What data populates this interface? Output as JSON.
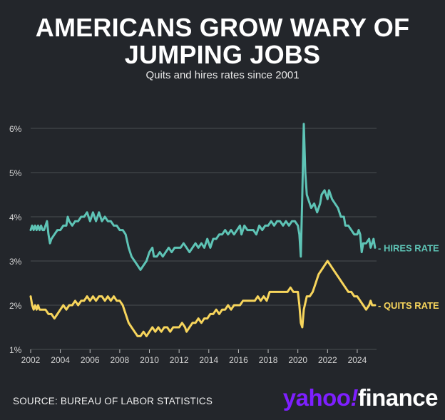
{
  "title_line1": "AMERICANS GROW WARY OF",
  "title_line2": "JUMPING JOBS",
  "subtitle": "Quits and hires rates since 2001",
  "source": "SOURCE: BUREAU OF LABOR STATISTICS",
  "logo": {
    "part1": "yahoo",
    "bang": "!",
    "part2": "finance"
  },
  "colors": {
    "background": "#23262b",
    "hires": "#5ec4b6",
    "quits": "#f7d55c",
    "grid": "#4a4d52",
    "axis_text": "#d4d4d4",
    "logo": "#7e1fff"
  },
  "chart_data": {
    "type": "line",
    "title": "AMERICANS GROW WARY OF JUMPING JOBS",
    "subtitle": "Quits and hires rates since 2001",
    "xlabel": "",
    "ylabel": "",
    "xlim": [
      2002.0,
      2025.3
    ],
    "ylim": [
      1,
      6
    ],
    "grid": true,
    "y_ticks": [
      {
        "value": 1,
        "label": "1%"
      },
      {
        "value": 2,
        "label": "2%"
      },
      {
        "value": 3,
        "label": "3%"
      },
      {
        "value": 4,
        "label": "4%"
      },
      {
        "value": 5,
        "label": "5%"
      },
      {
        "value": 6,
        "label": "6%"
      }
    ],
    "x_ticks": [
      {
        "value": 2002,
        "label": "2002"
      },
      {
        "value": 2004,
        "label": "2004"
      },
      {
        "value": 2006,
        "label": "2006"
      },
      {
        "value": 2008,
        "label": "2008"
      },
      {
        "value": 2010,
        "label": "2010"
      },
      {
        "value": 2012,
        "label": "2012"
      },
      {
        "value": 2014,
        "label": "2014"
      },
      {
        "value": 2016,
        "label": "2016"
      },
      {
        "value": 2018,
        "label": "2018"
      },
      {
        "value": 2020,
        "label": "2020"
      },
      {
        "value": 2022,
        "label": "2022"
      },
      {
        "value": 2024,
        "label": "2024"
      }
    ],
    "series": [
      {
        "name": "HIRES RATE",
        "label": "- HIRES RATE",
        "color": "#5ec4b6",
        "points": [
          [
            2002.0,
            3.7
          ],
          [
            2002.1,
            3.8
          ],
          [
            2002.2,
            3.7
          ],
          [
            2002.3,
            3.8
          ],
          [
            2002.4,
            3.7
          ],
          [
            2002.5,
            3.8
          ],
          [
            2002.6,
            3.7
          ],
          [
            2002.7,
            3.8
          ],
          [
            2002.8,
            3.7
          ],
          [
            2002.9,
            3.7
          ],
          [
            2003.0,
            3.8
          ],
          [
            2003.1,
            3.9
          ],
          [
            2003.2,
            3.6
          ],
          [
            2003.3,
            3.4
          ],
          [
            2003.4,
            3.5
          ],
          [
            2003.6,
            3.6
          ],
          [
            2003.8,
            3.7
          ],
          [
            2004.0,
            3.7
          ],
          [
            2004.2,
            3.8
          ],
          [
            2004.4,
            3.8
          ],
          [
            2004.5,
            4.0
          ],
          [
            2004.6,
            3.9
          ],
          [
            2004.8,
            3.8
          ],
          [
            2005.0,
            3.9
          ],
          [
            2005.2,
            3.9
          ],
          [
            2005.4,
            4.0
          ],
          [
            2005.6,
            4.0
          ],
          [
            2005.8,
            4.1
          ],
          [
            2006.0,
            3.9
          ],
          [
            2006.2,
            4.1
          ],
          [
            2006.4,
            3.9
          ],
          [
            2006.6,
            4.1
          ],
          [
            2006.8,
            3.9
          ],
          [
            2007.0,
            4.0
          ],
          [
            2007.2,
            3.9
          ],
          [
            2007.4,
            3.9
          ],
          [
            2007.6,
            3.8
          ],
          [
            2007.8,
            3.8
          ],
          [
            2008.0,
            3.7
          ],
          [
            2008.2,
            3.7
          ],
          [
            2008.4,
            3.6
          ],
          [
            2008.6,
            3.3
          ],
          [
            2008.8,
            3.1
          ],
          [
            2009.0,
            3.0
          ],
          [
            2009.2,
            2.9
          ],
          [
            2009.4,
            2.8
          ],
          [
            2009.6,
            2.9
          ],
          [
            2009.8,
            3.0
          ],
          [
            2010.0,
            3.2
          ],
          [
            2010.2,
            3.3
          ],
          [
            2010.3,
            3.1
          ],
          [
            2010.5,
            3.1
          ],
          [
            2010.7,
            3.2
          ],
          [
            2010.9,
            3.1
          ],
          [
            2011.1,
            3.2
          ],
          [
            2011.3,
            3.3
          ],
          [
            2011.5,
            3.2
          ],
          [
            2011.7,
            3.3
          ],
          [
            2011.9,
            3.3
          ],
          [
            2012.1,
            3.3
          ],
          [
            2012.3,
            3.4
          ],
          [
            2012.5,
            3.3
          ],
          [
            2012.7,
            3.2
          ],
          [
            2012.9,
            3.3
          ],
          [
            2013.1,
            3.4
          ],
          [
            2013.3,
            3.3
          ],
          [
            2013.5,
            3.4
          ],
          [
            2013.7,
            3.3
          ],
          [
            2013.9,
            3.5
          ],
          [
            2014.1,
            3.3
          ],
          [
            2014.3,
            3.5
          ],
          [
            2014.5,
            3.5
          ],
          [
            2014.7,
            3.6
          ],
          [
            2014.9,
            3.6
          ],
          [
            2015.1,
            3.7
          ],
          [
            2015.3,
            3.6
          ],
          [
            2015.5,
            3.7
          ],
          [
            2015.7,
            3.6
          ],
          [
            2015.9,
            3.7
          ],
          [
            2016.1,
            3.8
          ],
          [
            2016.2,
            3.6
          ],
          [
            2016.4,
            3.8
          ],
          [
            2016.6,
            3.7
          ],
          [
            2016.8,
            3.7
          ],
          [
            2017.0,
            3.7
          ],
          [
            2017.2,
            3.6
          ],
          [
            2017.4,
            3.8
          ],
          [
            2017.6,
            3.7
          ],
          [
            2017.8,
            3.8
          ],
          [
            2018.0,
            3.8
          ],
          [
            2018.2,
            3.9
          ],
          [
            2018.4,
            3.8
          ],
          [
            2018.6,
            3.9
          ],
          [
            2018.8,
            3.9
          ],
          [
            2019.0,
            3.8
          ],
          [
            2019.2,
            3.9
          ],
          [
            2019.4,
            3.8
          ],
          [
            2019.6,
            3.9
          ],
          [
            2019.8,
            3.9
          ],
          [
            2020.0,
            3.8
          ],
          [
            2020.1,
            3.6
          ],
          [
            2020.2,
            3.1
          ],
          [
            2020.3,
            4.5
          ],
          [
            2020.4,
            6.1
          ],
          [
            2020.5,
            5.0
          ],
          [
            2020.6,
            4.5
          ],
          [
            2020.7,
            4.4
          ],
          [
            2020.9,
            4.2
          ],
          [
            2021.1,
            4.3
          ],
          [
            2021.3,
            4.1
          ],
          [
            2021.5,
            4.3
          ],
          [
            2021.6,
            4.5
          ],
          [
            2021.8,
            4.6
          ],
          [
            2022.0,
            4.4
          ],
          [
            2022.1,
            4.6
          ],
          [
            2022.3,
            4.4
          ],
          [
            2022.5,
            4.3
          ],
          [
            2022.7,
            4.2
          ],
          [
            2022.9,
            4.0
          ],
          [
            2023.1,
            4.0
          ],
          [
            2023.2,
            3.8
          ],
          [
            2023.4,
            3.8
          ],
          [
            2023.6,
            3.7
          ],
          [
            2023.8,
            3.6
          ],
          [
            2024.0,
            3.6
          ],
          [
            2024.1,
            3.7
          ],
          [
            2024.2,
            3.6
          ],
          [
            2024.3,
            3.2
          ],
          [
            2024.4,
            3.4
          ],
          [
            2024.6,
            3.4
          ],
          [
            2024.8,
            3.5
          ],
          [
            2024.9,
            3.3
          ],
          [
            2025.0,
            3.4
          ],
          [
            2025.1,
            3.5
          ],
          [
            2025.2,
            3.3
          ]
        ]
      },
      {
        "name": "QUITS RATE",
        "label": "- QUITS RATE",
        "color": "#f7d55c",
        "points": [
          [
            2002.0,
            2.2
          ],
          [
            2002.1,
            2.0
          ],
          [
            2002.2,
            1.9
          ],
          [
            2002.3,
            2.0
          ],
          [
            2002.4,
            1.9
          ],
          [
            2002.5,
            2.0
          ],
          [
            2002.6,
            1.9
          ],
          [
            2002.8,
            1.9
          ],
          [
            2003.0,
            1.9
          ],
          [
            2003.2,
            1.8
          ],
          [
            2003.4,
            1.8
          ],
          [
            2003.6,
            1.7
          ],
          [
            2003.8,
            1.8
          ],
          [
            2004.0,
            1.9
          ],
          [
            2004.2,
            2.0
          ],
          [
            2004.4,
            1.9
          ],
          [
            2004.6,
            2.0
          ],
          [
            2004.8,
            2.0
          ],
          [
            2005.0,
            2.1
          ],
          [
            2005.2,
            2.0
          ],
          [
            2005.4,
            2.1
          ],
          [
            2005.6,
            2.1
          ],
          [
            2005.8,
            2.2
          ],
          [
            2006.0,
            2.1
          ],
          [
            2006.2,
            2.2
          ],
          [
            2006.4,
            2.1
          ],
          [
            2006.6,
            2.2
          ],
          [
            2006.8,
            2.2
          ],
          [
            2007.0,
            2.1
          ],
          [
            2007.2,
            2.2
          ],
          [
            2007.4,
            2.1
          ],
          [
            2007.6,
            2.2
          ],
          [
            2007.8,
            2.1
          ],
          [
            2008.0,
            2.1
          ],
          [
            2008.2,
            2.0
          ],
          [
            2008.4,
            1.8
          ],
          [
            2008.6,
            1.6
          ],
          [
            2008.8,
            1.5
          ],
          [
            2009.0,
            1.4
          ],
          [
            2009.2,
            1.3
          ],
          [
            2009.4,
            1.3
          ],
          [
            2009.6,
            1.4
          ],
          [
            2009.8,
            1.3
          ],
          [
            2010.0,
            1.4
          ],
          [
            2010.2,
            1.5
          ],
          [
            2010.4,
            1.4
          ],
          [
            2010.6,
            1.5
          ],
          [
            2010.8,
            1.4
          ],
          [
            2011.0,
            1.5
          ],
          [
            2011.2,
            1.5
          ],
          [
            2011.4,
            1.4
          ],
          [
            2011.6,
            1.5
          ],
          [
            2011.8,
            1.5
          ],
          [
            2012.0,
            1.5
          ],
          [
            2012.2,
            1.6
          ],
          [
            2012.4,
            1.5
          ],
          [
            2012.5,
            1.4
          ],
          [
            2012.7,
            1.5
          ],
          [
            2012.9,
            1.6
          ],
          [
            2013.1,
            1.6
          ],
          [
            2013.3,
            1.7
          ],
          [
            2013.5,
            1.6
          ],
          [
            2013.7,
            1.7
          ],
          [
            2013.9,
            1.7
          ],
          [
            2014.1,
            1.8
          ],
          [
            2014.3,
            1.8
          ],
          [
            2014.5,
            1.9
          ],
          [
            2014.7,
            1.8
          ],
          [
            2014.9,
            1.9
          ],
          [
            2015.1,
            1.9
          ],
          [
            2015.3,
            2.0
          ],
          [
            2015.5,
            1.9
          ],
          [
            2015.7,
            2.0
          ],
          [
            2015.9,
            2.0
          ],
          [
            2016.1,
            2.0
          ],
          [
            2016.3,
            2.1
          ],
          [
            2016.5,
            2.1
          ],
          [
            2016.7,
            2.1
          ],
          [
            2016.9,
            2.1
          ],
          [
            2017.1,
            2.1
          ],
          [
            2017.3,
            2.2
          ],
          [
            2017.5,
            2.1
          ],
          [
            2017.7,
            2.2
          ],
          [
            2017.9,
            2.1
          ],
          [
            2018.1,
            2.3
          ],
          [
            2018.3,
            2.3
          ],
          [
            2018.5,
            2.3
          ],
          [
            2018.7,
            2.3
          ],
          [
            2018.9,
            2.3
          ],
          [
            2019.1,
            2.3
          ],
          [
            2019.3,
            2.3
          ],
          [
            2019.5,
            2.4
          ],
          [
            2019.7,
            2.3
          ],
          [
            2019.9,
            2.3
          ],
          [
            2020.0,
            2.3
          ],
          [
            2020.1,
            2.0
          ],
          [
            2020.2,
            1.6
          ],
          [
            2020.3,
            1.5
          ],
          [
            2020.4,
            1.9
          ],
          [
            2020.6,
            2.2
          ],
          [
            2020.8,
            2.2
          ],
          [
            2021.0,
            2.3
          ],
          [
            2021.2,
            2.5
          ],
          [
            2021.4,
            2.7
          ],
          [
            2021.6,
            2.8
          ],
          [
            2021.8,
            2.9
          ],
          [
            2022.0,
            3.0
          ],
          [
            2022.2,
            2.9
          ],
          [
            2022.4,
            2.8
          ],
          [
            2022.6,
            2.7
          ],
          [
            2022.8,
            2.6
          ],
          [
            2023.0,
            2.5
          ],
          [
            2023.2,
            2.4
          ],
          [
            2023.4,
            2.3
          ],
          [
            2023.6,
            2.3
          ],
          [
            2023.8,
            2.2
          ],
          [
            2024.0,
            2.2
          ],
          [
            2024.2,
            2.1
          ],
          [
            2024.4,
            2.0
          ],
          [
            2024.6,
            1.9
          ],
          [
            2024.8,
            2.0
          ],
          [
            2024.9,
            2.1
          ],
          [
            2025.0,
            2.0
          ],
          [
            2025.2,
            2.0
          ]
        ]
      }
    ]
  }
}
